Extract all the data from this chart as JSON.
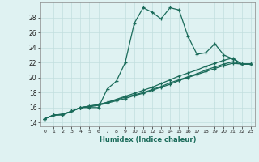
{
  "xlabel": "Humidex (Indice chaleur)",
  "bg_color": "#dff2f2",
  "grid_color": "#c2dede",
  "line_color": "#1a6b5a",
  "xlim": [
    -0.5,
    23.5
  ],
  "ylim": [
    13.5,
    30
  ],
  "xticks": [
    0,
    1,
    2,
    3,
    4,
    5,
    6,
    7,
    8,
    9,
    10,
    11,
    12,
    13,
    14,
    15,
    16,
    17,
    18,
    19,
    20,
    21,
    22,
    23
  ],
  "yticks": [
    14,
    16,
    18,
    20,
    22,
    24,
    26,
    28
  ],
  "series": [
    {
      "x": [
        0,
        1,
        2,
        3,
        4,
        5,
        6,
        7,
        8,
        9,
        10,
        11,
        12,
        13,
        14,
        15,
        16,
        17,
        18,
        19,
        20,
        21,
        22,
        23
      ],
      "y": [
        14.5,
        15.0,
        15.0,
        15.5,
        16.0,
        16.0,
        16.0,
        18.5,
        19.5,
        22.0,
        27.2,
        29.3,
        28.7,
        27.8,
        29.3,
        29.0,
        25.5,
        23.1,
        23.3,
        24.5,
        23.0,
        22.5,
        21.8,
        21.8
      ]
    },
    {
      "x": [
        0,
        1,
        2,
        3,
        4,
        5,
        6,
        7,
        8,
        9,
        10,
        11,
        12,
        13,
        14,
        15,
        16,
        17,
        18,
        19,
        20,
        21,
        22,
        23
      ],
      "y": [
        14.5,
        15.0,
        15.1,
        15.5,
        16.0,
        16.2,
        16.4,
        16.7,
        17.1,
        17.5,
        17.9,
        18.3,
        18.7,
        19.2,
        19.7,
        20.2,
        20.6,
        21.0,
        21.5,
        21.9,
        22.3,
        22.6,
        21.8,
        21.8
      ]
    },
    {
      "x": [
        0,
        1,
        2,
        3,
        4,
        5,
        6,
        7,
        8,
        9,
        10,
        11,
        12,
        13,
        14,
        15,
        16,
        17,
        18,
        19,
        20,
        21,
        22,
        23
      ],
      "y": [
        14.5,
        15.0,
        15.1,
        15.5,
        16.0,
        16.2,
        16.4,
        16.7,
        17.0,
        17.4,
        17.7,
        18.0,
        18.4,
        18.8,
        19.3,
        19.7,
        20.1,
        20.5,
        21.0,
        21.4,
        21.8,
        22.1,
        21.8,
        21.8
      ]
    },
    {
      "x": [
        0,
        1,
        2,
        3,
        4,
        5,
        6,
        7,
        8,
        9,
        10,
        11,
        12,
        13,
        14,
        15,
        16,
        17,
        18,
        19,
        20,
        21,
        22,
        23
      ],
      "y": [
        14.5,
        15.0,
        15.1,
        15.5,
        16.0,
        16.1,
        16.3,
        16.6,
        16.9,
        17.2,
        17.6,
        17.9,
        18.3,
        18.7,
        19.1,
        19.6,
        20.0,
        20.4,
        20.8,
        21.2,
        21.6,
        21.9,
        21.8,
        21.8
      ]
    }
  ]
}
